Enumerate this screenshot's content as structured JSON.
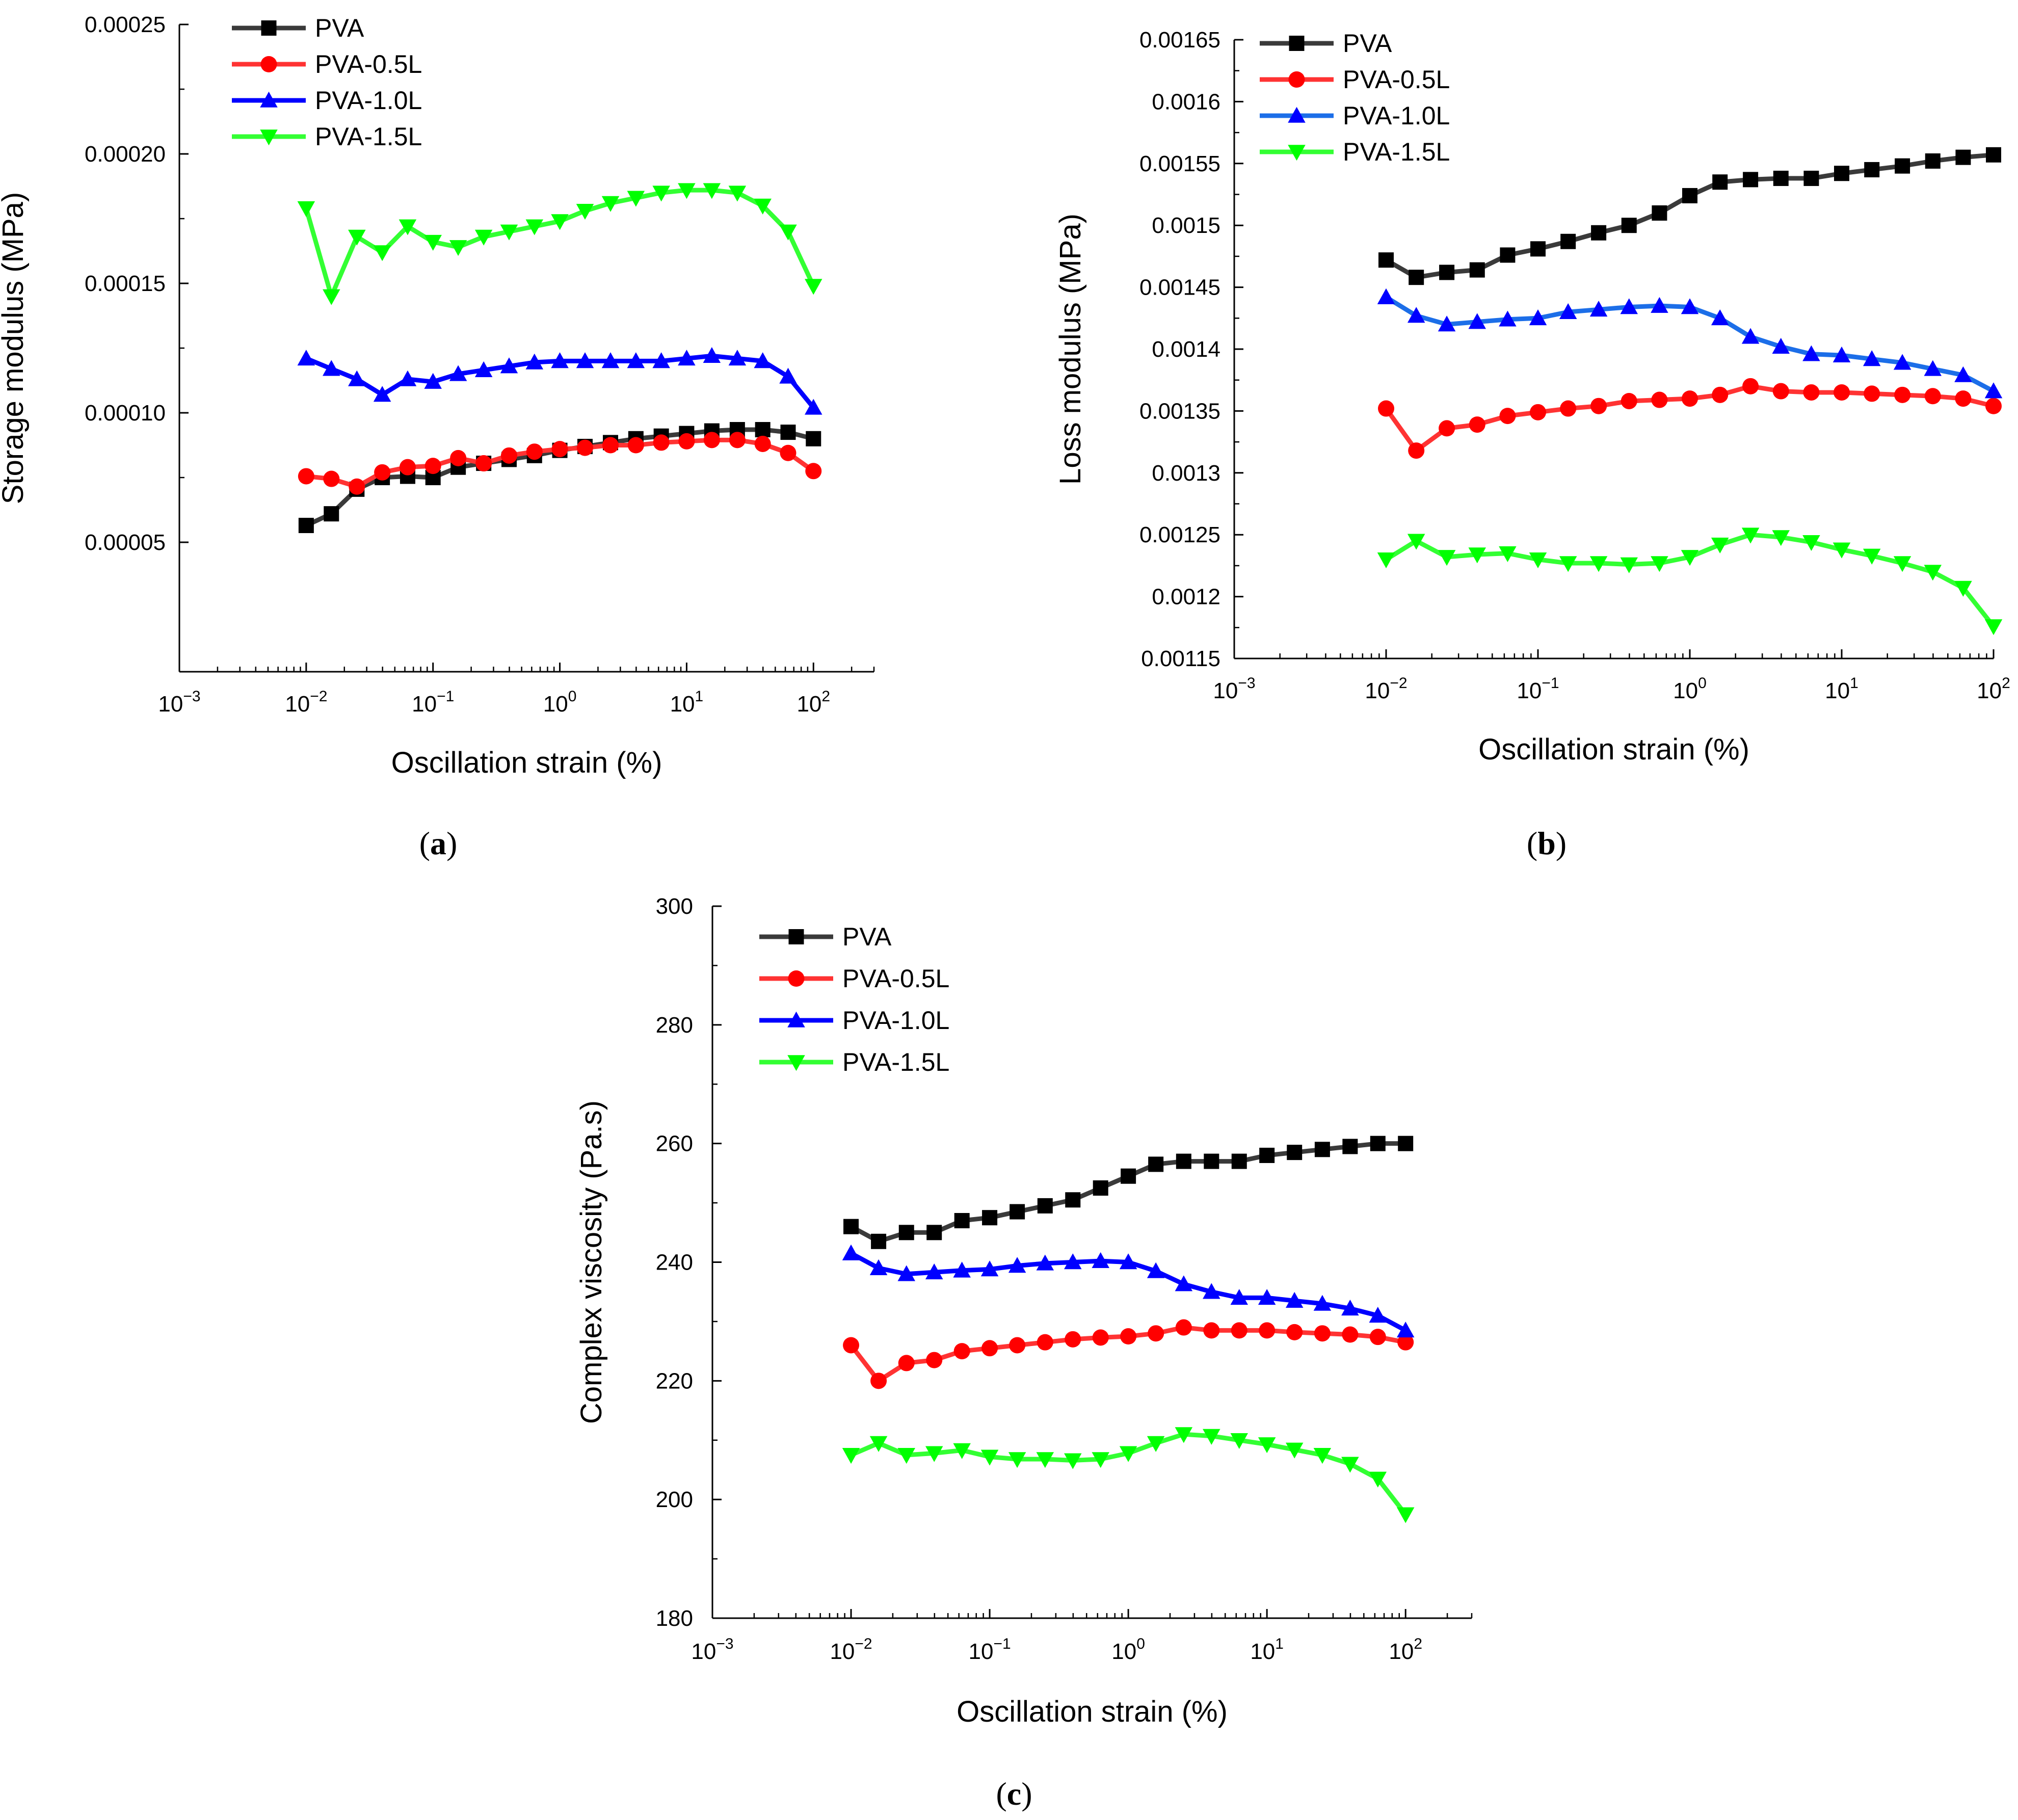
{
  "chart_data": [
    {
      "type": "line",
      "panel_label": "a",
      "xlabel": "Oscillation strain (%)",
      "ylabel": "Storage modulus (MPa)",
      "xscale": "log",
      "xlim": [
        0.001,
        300
      ],
      "ylim": [
        0.0,
        0.00025
      ],
      "x_ticks": [
        {
          "label": "10",
          "exp": "−3",
          "value": 0.001
        },
        {
          "label": "10",
          "exp": "−2",
          "value": 0.01
        },
        {
          "label": "10",
          "exp": "−1",
          "value": 0.1
        },
        {
          "label": "10",
          "exp": "0",
          "value": 1
        },
        {
          "label": "10",
          "exp": "1",
          "value": 10
        },
        {
          "label": "10",
          "exp": "2",
          "value": 100
        }
      ],
      "y_ticks": [
        {
          "label": "0.00005",
          "value": 5e-05
        },
        {
          "label": "0.00010",
          "value": 0.0001
        },
        {
          "label": "0.00015",
          "value": 0.00015
        },
        {
          "label": "0.00020",
          "value": 0.0002
        },
        {
          "label": "0.00025",
          "value": 0.00025
        }
      ],
      "legend_position": "top-left",
      "x": [
        0.01,
        0.0158,
        0.0251,
        0.0398,
        0.0631,
        0.1,
        0.158,
        0.251,
        0.398,
        0.631,
        1,
        1.58,
        2.51,
        3.98,
        6.31,
        10,
        15.8,
        25.1,
        39.8,
        63.1,
        100
      ],
      "series": [
        {
          "name": "PVA",
          "color": "#000000",
          "line_color": "#3a3a3a",
          "marker": "square",
          "values": [
            5.65e-05,
            6.1e-05,
            7.05e-05,
            7.5e-05,
            7.55e-05,
            7.5e-05,
            7.9e-05,
            8.05e-05,
            8.2e-05,
            8.35e-05,
            8.55e-05,
            8.7e-05,
            8.85e-05,
            9e-05,
            9.1e-05,
            9.2e-05,
            9.3e-05,
            9.35e-05,
            9.35e-05,
            9.25e-05,
            9e-05
          ]
        },
        {
          "name": "PVA-0.5L",
          "color": "#ff0000",
          "line_color": "#ff3333",
          "marker": "circle",
          "values": [
            7.55e-05,
            7.45e-05,
            7.15e-05,
            7.7e-05,
            7.9e-05,
            7.95e-05,
            8.25e-05,
            8.05e-05,
            8.35e-05,
            8.5e-05,
            8.6e-05,
            8.65e-05,
            8.75e-05,
            8.75e-05,
            8.85e-05,
            8.9e-05,
            8.95e-05,
            8.95e-05,
            8.8e-05,
            8.45e-05,
            7.75e-05
          ]
        },
        {
          "name": "PVA-1.0L",
          "color": "#0000ff",
          "line_color": "#0000ff",
          "marker": "triangle-up",
          "values": [
            0.000121,
            0.000117,
            0.000113,
            0.000107,
            0.000113,
            0.000112,
            0.000115,
            0.0001165,
            0.000118,
            0.0001195,
            0.00012,
            0.00012,
            0.00012,
            0.00012,
            0.00012,
            0.000121,
            0.000122,
            0.000121,
            0.00012,
            0.000114,
            0.000102
          ]
        },
        {
          "name": "PVA-1.5L",
          "color": "#00ff00",
          "line_color": "#33ff33",
          "marker": "triangle-down",
          "values": [
            0.000179,
            0.000145,
            0.000168,
            0.000162,
            0.000172,
            0.000166,
            0.000164,
            0.000168,
            0.00017,
            0.000172,
            0.000174,
            0.000178,
            0.000181,
            0.000183,
            0.000185,
            0.000186,
            0.000186,
            0.000185,
            0.00018,
            0.00017,
            0.000149
          ]
        }
      ]
    },
    {
      "type": "line",
      "panel_label": "b",
      "xlabel": "Oscillation strain (%)",
      "ylabel": "Loss modulus (MPa)",
      "xscale": "log",
      "xlim": [
        0.001,
        100
      ],
      "ylim": [
        0.00115,
        0.00165
      ],
      "x_ticks": [
        {
          "label": "10",
          "exp": "−3",
          "value": 0.001
        },
        {
          "label": "10",
          "exp": "−2",
          "value": 0.01
        },
        {
          "label": "10",
          "exp": "−1",
          "value": 0.1
        },
        {
          "label": "10",
          "exp": "0",
          "value": 1
        },
        {
          "label": "10",
          "exp": "1",
          "value": 10
        },
        {
          "label": "10",
          "exp": "2",
          "value": 100
        }
      ],
      "y_ticks": [
        {
          "label": "0.00115",
          "value": 0.00115
        },
        {
          "label": "0.0012",
          "value": 0.0012
        },
        {
          "label": "0.00125",
          "value": 0.00125
        },
        {
          "label": "0.0013",
          "value": 0.0013
        },
        {
          "label": "0.00135",
          "value": 0.00135
        },
        {
          "label": "0.0014",
          "value": 0.0014
        },
        {
          "label": "0.00145",
          "value": 0.00145
        },
        {
          "label": "0.0015",
          "value": 0.0015
        },
        {
          "label": "0.00155",
          "value": 0.00155
        },
        {
          "label": "0.0016",
          "value": 0.0016
        },
        {
          "label": "0.00165",
          "value": 0.00165
        }
      ],
      "legend_position": "top-left",
      "x": [
        0.01,
        0.0158,
        0.0251,
        0.0398,
        0.0631,
        0.1,
        0.158,
        0.251,
        0.398,
        0.631,
        1,
        1.58,
        2.51,
        3.98,
        6.31,
        10,
        15.8,
        25.1,
        39.8,
        63.1,
        100
      ],
      "series": [
        {
          "name": "PVA",
          "color": "#000000",
          "line_color": "#3a3a3a",
          "marker": "square",
          "values": [
            0.001472,
            0.001458,
            0.001462,
            0.001464,
            0.001476,
            0.001481,
            0.001487,
            0.001494,
            0.0015,
            0.00151,
            0.001524,
            0.001535,
            0.001537,
            0.001538,
            0.001538,
            0.001542,
            0.001545,
            0.001548,
            0.001552,
            0.001555,
            0.001557
          ]
        },
        {
          "name": "PVA-0.5L",
          "color": "#ff0000",
          "line_color": "#ff3333",
          "marker": "circle",
          "values": [
            0.001352,
            0.001318,
            0.001336,
            0.001339,
            0.001346,
            0.001349,
            0.001352,
            0.001354,
            0.001358,
            0.001359,
            0.00136,
            0.001363,
            0.00137,
            0.001366,
            0.001365,
            0.001365,
            0.001364,
            0.001363,
            0.001362,
            0.00136,
            0.001354
          ]
        },
        {
          "name": "PVA-1.0L",
          "color": "#0000ff",
          "line_color": "#1c6ee8",
          "marker": "triangle-up",
          "values": [
            0.001442,
            0.001427,
            0.00142,
            0.001422,
            0.001424,
            0.001425,
            0.00143,
            0.001432,
            0.001434,
            0.001435,
            0.001434,
            0.001425,
            0.00141,
            0.001402,
            0.001396,
            0.001395,
            0.001392,
            0.001389,
            0.001384,
            0.001379,
            0.001366
          ]
        },
        {
          "name": "PVA-1.5L",
          "color": "#00ff00",
          "line_color": "#33ff33",
          "marker": "triangle-down",
          "values": [
            0.00123,
            0.001245,
            0.001232,
            0.001234,
            0.001235,
            0.00123,
            0.001227,
            0.001227,
            0.001226,
            0.001227,
            0.001232,
            0.001242,
            0.00125,
            0.001248,
            0.001244,
            0.001238,
            0.001233,
            0.001227,
            0.00122,
            0.001207,
            0.001176
          ]
        }
      ]
    },
    {
      "type": "line",
      "panel_label": "c",
      "xlabel": "Oscillation strain (%)",
      "ylabel": "Complex viscosity (Pa.s)",
      "xscale": "log",
      "xlim": [
        0.001,
        300
      ],
      "ylim": [
        180,
        300
      ],
      "x_ticks": [
        {
          "label": "10",
          "exp": "−3",
          "value": 0.001
        },
        {
          "label": "10",
          "exp": "−2",
          "value": 0.01
        },
        {
          "label": "10",
          "exp": "−1",
          "value": 0.1
        },
        {
          "label": "10",
          "exp": "0",
          "value": 1
        },
        {
          "label": "10",
          "exp": "1",
          "value": 10
        },
        {
          "label": "10",
          "exp": "2",
          "value": 100
        }
      ],
      "y_ticks": [
        {
          "label": "180",
          "value": 180
        },
        {
          "label": "200",
          "value": 200
        },
        {
          "label": "220",
          "value": 220
        },
        {
          "label": "240",
          "value": 240
        },
        {
          "label": "260",
          "value": 260
        },
        {
          "label": "280",
          "value": 280
        },
        {
          "label": "300",
          "value": 300
        }
      ],
      "legend_position": "top-left",
      "x": [
        0.01,
        0.0158,
        0.0251,
        0.0398,
        0.0631,
        0.1,
        0.158,
        0.251,
        0.398,
        0.631,
        1,
        1.58,
        2.51,
        3.98,
        6.31,
        10,
        15.8,
        25.1,
        39.8,
        63.1,
        100
      ],
      "series": [
        {
          "name": "PVA",
          "color": "#000000",
          "line_color": "#3a3a3a",
          "marker": "square",
          "values": [
            246,
            243.5,
            245,
            245,
            247,
            247.5,
            248.5,
            249.5,
            250.5,
            252.5,
            254.5,
            256.5,
            257,
            257,
            257,
            258,
            258.5,
            259,
            259.5,
            260,
            260
          ]
        },
        {
          "name": "PVA-0.5L",
          "color": "#ff0000",
          "line_color": "#ff3333",
          "marker": "circle",
          "values": [
            226,
            220,
            223,
            223.5,
            225,
            225.5,
            226,
            226.5,
            227,
            227.3,
            227.5,
            228,
            229,
            228.5,
            228.5,
            228.5,
            228.2,
            228,
            227.8,
            227.4,
            226.5
          ]
        },
        {
          "name": "PVA-1.0L",
          "color": "#0000ff",
          "line_color": "#0000ff",
          "marker": "triangle-up",
          "values": [
            241.5,
            239,
            238,
            238.3,
            238.6,
            238.8,
            239.4,
            239.8,
            240,
            240.2,
            240,
            238.5,
            236.3,
            235,
            234,
            234,
            233.5,
            233,
            232.2,
            231,
            228.5
          ]
        },
        {
          "name": "PVA-1.5L",
          "color": "#00ff00",
          "line_color": "#33ff33",
          "marker": "triangle-down",
          "values": [
            207.5,
            209.5,
            207.5,
            207.8,
            208.3,
            207.2,
            206.8,
            206.8,
            206.6,
            206.8,
            207.8,
            209.5,
            211,
            210.7,
            210,
            209.3,
            208.4,
            207.5,
            206,
            203.5,
            197.5
          ]
        }
      ]
    }
  ]
}
